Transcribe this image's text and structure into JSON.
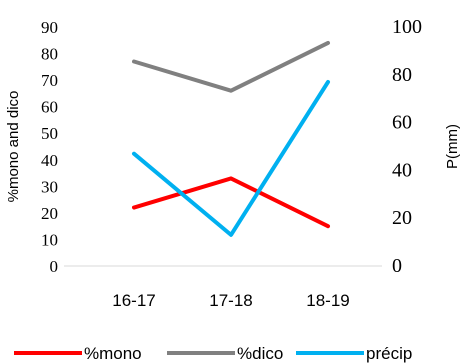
{
  "chart_data": {
    "type": "line",
    "categories": [
      "16-17",
      "17-18",
      "18-19"
    ],
    "left_axis": {
      "label": "%mono and dico",
      "ylim": [
        0,
        90
      ],
      "ticks": [
        "0",
        "10",
        "20",
        "30",
        "40",
        "50",
        "60",
        "70",
        "80",
        "90"
      ]
    },
    "right_axis": {
      "label": "P(mm)",
      "ylim": [
        0,
        100
      ],
      "ticks": [
        "0",
        "20",
        "40",
        "60",
        "80",
        "100"
      ]
    },
    "series": [
      {
        "name": "%mono",
        "axis": "left",
        "color": "#ff0000",
        "values": [
          22,
          33,
          15
        ]
      },
      {
        "name": "%dico",
        "axis": "left",
        "color": "#808080",
        "values": [
          77,
          66,
          84
        ]
      },
      {
        "name": "précip",
        "axis": "right",
        "color": "#00b0f0",
        "values": [
          47,
          13,
          77
        ]
      }
    ],
    "grid": false,
    "legend_position": "bottom"
  }
}
